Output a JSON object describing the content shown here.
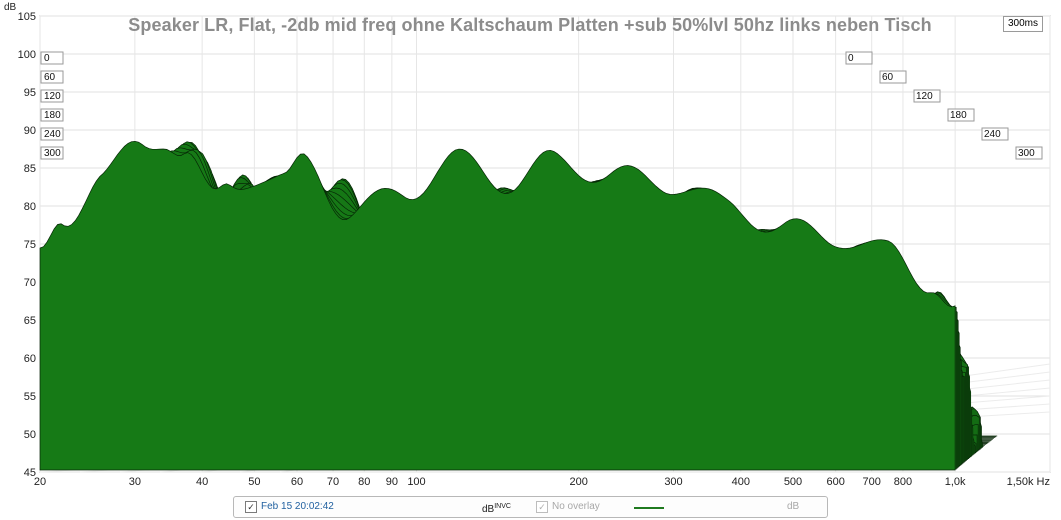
{
  "chart_data": {
    "type": "waterfall",
    "title": "Speaker LR, Flat, -2db mid freq ohne Kaltschaum Platten +sub 50%lvl 50hz links neben Tisch",
    "ylabel": "dB",
    "xlabel": "",
    "x_unit_label": "Hz",
    "x_scale": "log",
    "xlim": [
      20,
      1500
    ],
    "ylim": [
      45,
      105
    ],
    "x_ticks": [
      20,
      30,
      40,
      50,
      60,
      70,
      80,
      90,
      100,
      200,
      300,
      400,
      500,
      600,
      700,
      800,
      1000,
      1500
    ],
    "x_tick_labels": [
      "20",
      "30",
      "40",
      "50",
      "60",
      "70",
      "80",
      "90",
      "100",
      "200",
      "300",
      "400",
      "500",
      "600",
      "700",
      "800",
      "1,0k",
      "1,50k Hz"
    ],
    "y_ticks": [
      45,
      50,
      55,
      60,
      65,
      70,
      75,
      80,
      85,
      90,
      95,
      100,
      105
    ],
    "y_tick_labels": [
      "45",
      "50",
      "55",
      "60",
      "65",
      "70",
      "75",
      "80",
      "85",
      "90",
      "95",
      "100",
      "105"
    ],
    "time_ticks_ms": [
      "0",
      "60",
      "120",
      "180",
      "240",
      "300"
    ],
    "time_range_label": "300ms",
    "fill_color": "#167a16",
    "line_color": "#062606",
    "grid": true,
    "slice_count": 40,
    "first_slice_peaks": [
      {
        "f": 20,
        "db": 73
      },
      {
        "f": 22,
        "db": 78
      },
      {
        "f": 26,
        "db": 84
      },
      {
        "f": 31,
        "db": 88
      },
      {
        "f": 34,
        "db": 89
      },
      {
        "f": 37,
        "db": 87
      },
      {
        "f": 42,
        "db": 81
      },
      {
        "f": 45,
        "db": 83
      },
      {
        "f": 50,
        "db": 84
      },
      {
        "f": 57,
        "db": 83
      },
      {
        "f": 62,
        "db": 86
      },
      {
        "f": 75,
        "db": 79
      },
      {
        "f": 95,
        "db": 82
      },
      {
        "f": 120,
        "db": 86
      },
      {
        "f": 150,
        "db": 83
      },
      {
        "f": 180,
        "db": 86
      },
      {
        "f": 230,
        "db": 84
      },
      {
        "f": 300,
        "db": 83
      },
      {
        "f": 380,
        "db": 80
      },
      {
        "f": 480,
        "db": 77
      },
      {
        "f": 600,
        "db": 76
      },
      {
        "f": 750,
        "db": 74
      },
      {
        "f": 900,
        "db": 70
      },
      {
        "f": 1000,
        "db": 66
      }
    ]
  },
  "legend": {
    "trace_label": "Feb 15 20:02:42",
    "trace_checked": "✓",
    "unit_main": "dB",
    "unit_super": "INVC",
    "overlay_checked": "✓",
    "overlay_label": "No overlay",
    "overlay_unit": "dB"
  }
}
